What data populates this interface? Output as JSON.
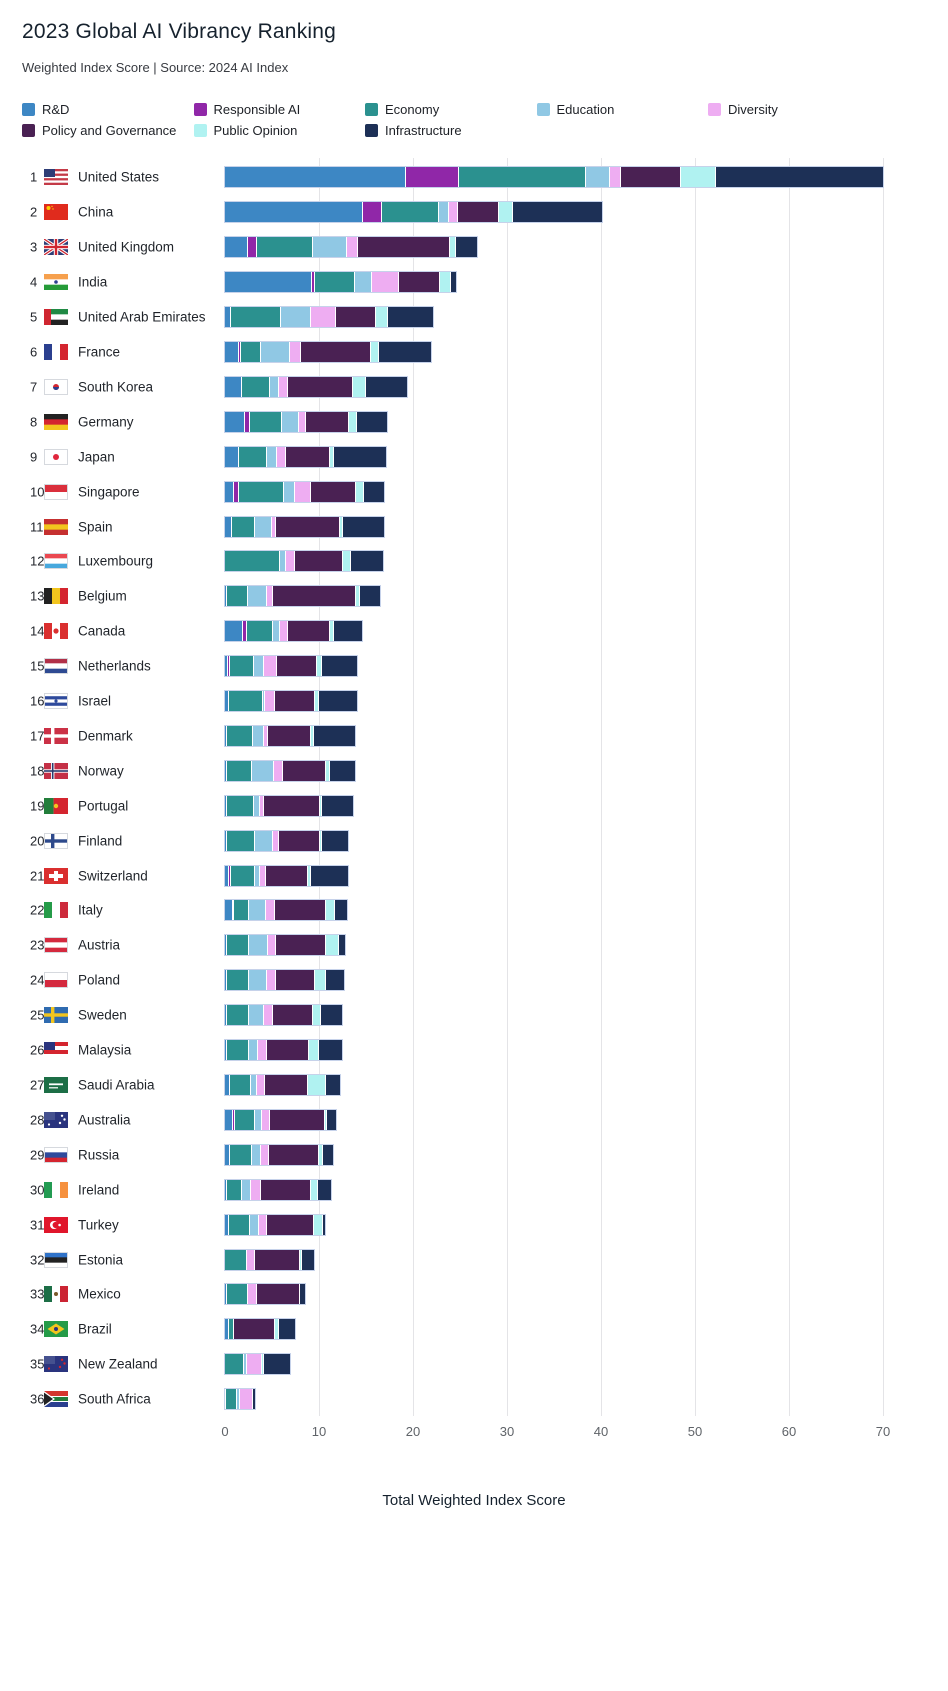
{
  "header": {
    "title": "2023 Global AI Vibrancy Ranking",
    "subtitle": "Weighted Index Score | Source: 2024 AI Index"
  },
  "palette": {
    "rnd": "#3d87c4",
    "responsible_ai": "#9027a8",
    "economy": "#2b918f",
    "education": "#90c8e4",
    "diversity": "#eeadf2",
    "policy": "#4a2153",
    "public_opinion": "#b0f2f1",
    "infrastructure": "#1d3056",
    "grid": "#e4e4e7",
    "bar_outline": "#c6d2ea"
  },
  "axis": {
    "ticks": [
      0,
      10,
      20,
      30,
      40,
      50,
      60,
      70
    ],
    "xlabel": "Total Weighted Index Score",
    "xlim": [
      0,
      70
    ]
  },
  "chart_data": {
    "type": "bar",
    "orientation": "horizontal",
    "stacked": true,
    "grid": true,
    "legend_position": "top",
    "xlabel": "Total Weighted Index Score",
    "xlim": [
      0,
      70
    ],
    "ranks": [
      1,
      2,
      3,
      4,
      5,
      6,
      7,
      8,
      9,
      10,
      11,
      12,
      13,
      14,
      15,
      16,
      17,
      18,
      19,
      20,
      21,
      22,
      23,
      24,
      25,
      26,
      27,
      28,
      29,
      30,
      31,
      32,
      33,
      34,
      35,
      36
    ],
    "categories": [
      "United States",
      "China",
      "United Kingdom",
      "India",
      "United Arab Emirates",
      "France",
      "South Korea",
      "Germany",
      "Japan",
      "Singapore",
      "Spain",
      "Luxembourg",
      "Belgium",
      "Canada",
      "Netherlands",
      "Israel",
      "Denmark",
      "Norway",
      "Portugal",
      "Finland",
      "Switzerland",
      "Italy",
      "Austria",
      "Poland",
      "Sweden",
      "Malaysia",
      "Saudi Arabia",
      "Australia",
      "Russia",
      "Ireland",
      "Turkey",
      "Estonia",
      "Mexico",
      "Brazil",
      "New Zealand",
      "South Africa"
    ],
    "series": [
      {
        "name": "R&D",
        "color_key": "rnd",
        "values": [
          19.3,
          14.7,
          2.4,
          9.3,
          0.6,
          1.5,
          1.8,
          2.1,
          1.5,
          1.0,
          0.7,
          0,
          0.2,
          1.9,
          0.3,
          0.4,
          0.2,
          0.2,
          0.2,
          0.2,
          0.4,
          0.8,
          0.2,
          0.2,
          0.2,
          0.2,
          0.5,
          0.8,
          0.5,
          0.2,
          0.4,
          0,
          0.2,
          0.4,
          0,
          0.15
        ]
      },
      {
        "name": "Responsible AI",
        "color_key": "responsible_ai",
        "values": [
          5.6,
          2.0,
          1.0,
          0.3,
          0,
          0.2,
          0,
          0.6,
          0,
          0.5,
          0,
          0,
          0,
          0.4,
          0.2,
          0,
          0,
          0,
          0,
          0,
          0.2,
          0.2,
          0,
          0,
          0,
          0,
          0,
          0.3,
          0,
          0,
          0,
          0,
          0,
          0,
          0,
          0
        ]
      },
      {
        "name": "Economy",
        "color_key": "economy",
        "values": [
          13.5,
          6.1,
          6.0,
          4.2,
          5.4,
          2.1,
          3.0,
          3.4,
          3.0,
          4.8,
          2.5,
          5.9,
          2.3,
          2.8,
          2.6,
          3.6,
          2.8,
          2.7,
          2.9,
          3.0,
          2.6,
          1.6,
          2.4,
          2.4,
          2.4,
          2.4,
          2.3,
          2.1,
          2.4,
          1.6,
          2.3,
          2.3,
          2.2,
          0.6,
          2.0,
          1.15
        ]
      },
      {
        "name": "Education",
        "color_key": "education",
        "values": [
          2.6,
          1.0,
          3.6,
          1.8,
          3.2,
          3.1,
          1.0,
          1.8,
          1.0,
          1.2,
          1.8,
          0.6,
          2.0,
          0.7,
          1.1,
          0.3,
          1.2,
          2.3,
          0.6,
          1.9,
          0.5,
          1.8,
          2.0,
          1.9,
          1.5,
          0.9,
          0.6,
          0.7,
          0.9,
          1.0,
          0.9,
          0,
          0,
          0,
          0.3,
          0.3
        ]
      },
      {
        "name": "Diversity",
        "color_key": "diversity",
        "values": [
          1.1,
          1.0,
          1.2,
          2.9,
          2.6,
          1.2,
          0.9,
          0.7,
          1.0,
          1.7,
          0.4,
          0.9,
          0.6,
          0.9,
          1.3,
          1.0,
          0.4,
          1.0,
          0.4,
          0.6,
          0.7,
          0.9,
          0.8,
          0.9,
          1.0,
          1.0,
          0.9,
          0.9,
          0.9,
          1.0,
          0.9,
          0.9,
          1.0,
          0,
          1.6,
          1.4
        ]
      },
      {
        "name": "Policy and Governance",
        "color_key": "policy",
        "values": [
          6.4,
          4.4,
          9.7,
          4.4,
          4.3,
          7.4,
          6.9,
          4.6,
          4.7,
          4.7,
          6.8,
          5.2,
          8.8,
          4.5,
          4.3,
          4.3,
          4.5,
          4.6,
          6.0,
          4.4,
          4.4,
          5.5,
          5.3,
          4.2,
          4.3,
          4.4,
          4.5,
          5.8,
          5.3,
          5.3,
          5.0,
          4.8,
          4.6,
          4.3,
          0,
          0
        ]
      },
      {
        "name": "Public Opinion",
        "color_key": "public_opinion",
        "values": [
          3.7,
          1.4,
          0.7,
          1.2,
          1.2,
          0.9,
          1.4,
          0.9,
          0.4,
          0.9,
          0.4,
          0.8,
          0.5,
          0.4,
          0.5,
          0.4,
          0.4,
          0.4,
          0.2,
          0.2,
          0.4,
          0.9,
          1.4,
          1.2,
          0.8,
          1.1,
          1.9,
          0.3,
          0.4,
          0.8,
          0.9,
          0.2,
          0,
          0.4,
          0.2,
          0
        ]
      },
      {
        "name": "Infrastructure",
        "color_key": "infrastructure",
        "values": [
          17.8,
          9.5,
          2.2,
          0.5,
          4.8,
          5.5,
          4.4,
          3.1,
          5.5,
          2.1,
          4.3,
          3.4,
          2.1,
          3.0,
          3.8,
          4.0,
          4.3,
          2.6,
          3.3,
          2.8,
          3.9,
          1.3,
          0.7,
          1.9,
          2.3,
          2.4,
          1.5,
          0.9,
          1.1,
          1.4,
          0.2,
          1.3,
          0.5,
          1.8,
          2.8,
          0.2
        ]
      }
    ]
  },
  "flags": [
    {
      "t": "h",
      "s": [
        "#c43a47",
        "#ffffff",
        "#c43a47",
        "#ffffff",
        "#c43a47",
        "#ffffff",
        "#c43a47"
      ],
      "canton": "#2e3d76"
    },
    {
      "t": "solid",
      "s": [
        "#e02b1d"
      ],
      "star": "#fcd000"
    },
    {
      "t": "uk"
    },
    {
      "t": "h",
      "s": [
        "#f6a04d",
        "#ffffff",
        "#259b38"
      ],
      "dot": "#2b3f8f",
      "dotr": 1.8
    },
    {
      "t": "h",
      "s": [
        "#208a44",
        "#ffffff",
        "#222222"
      ],
      "bar": "#cf2630"
    },
    {
      "t": "v",
      "s": [
        "#2b3f8f",
        "#ffffff",
        "#d4252f"
      ]
    },
    {
      "t": "solid",
      "s": [
        "#ffffff"
      ],
      "border": 1,
      "dot": "#d4252f",
      "dot2": "#2b3f8f"
    },
    {
      "t": "h",
      "s": [
        "#222222",
        "#d4252f",
        "#f2c51e"
      ]
    },
    {
      "t": "solid",
      "s": [
        "#ffffff"
      ],
      "border": 1,
      "dot": "#e0263c"
    },
    {
      "t": "h",
      "s": [
        "#da2f3c",
        "#ffffff"
      ],
      "border": 1
    },
    {
      "t": "h",
      "s": [
        "#c53030",
        "#f2c51e",
        "#c53030"
      ]
    },
    {
      "t": "h",
      "s": [
        "#ea4850",
        "#ffffff",
        "#47a8dd"
      ],
      "border": 1
    },
    {
      "t": "v",
      "s": [
        "#222222",
        "#f2c51e",
        "#d4252f"
      ]
    },
    {
      "t": "v",
      "s": [
        "#da2f2f",
        "#ffffff",
        "#da2f2f"
      ],
      "dot": "#da2f2f",
      "dotr": 2.6
    },
    {
      "t": "h",
      "s": [
        "#b13048",
        "#ffffff",
        "#2e4a92"
      ],
      "border": 1
    },
    {
      "t": "h",
      "s": [
        "#ffffff",
        "#2e4a9c",
        "#ffffff",
        "#2e4a9c",
        "#ffffff"
      ],
      "border": 1,
      "dot": "#2e4a9c",
      "dotr": 1.6
    },
    {
      "t": "cross",
      "s": [
        "#cb3146",
        "#ffffff"
      ]
    },
    {
      "t": "cross",
      "s": [
        "#c43046",
        "#ffffff",
        "#2a3a6e"
      ]
    },
    {
      "t": "v2",
      "s": [
        "#237e3b",
        "#d4252f"
      ],
      "dot": "#f2c51e",
      "dotr": 2.2
    },
    {
      "t": "cross",
      "s": [
        "#ffffff",
        "#2e4a8c"
      ],
      "border": 1
    },
    {
      "t": "chx",
      "s": [
        "#da2f2f",
        "#ffffff"
      ]
    },
    {
      "t": "v",
      "s": [
        "#259b48",
        "#ffffff",
        "#cd2a3c"
      ]
    },
    {
      "t": "h",
      "s": [
        "#d4293e",
        "#ffffff",
        "#d4293e"
      ],
      "border": 1
    },
    {
      "t": "h",
      "s": [
        "#ffffff",
        "#d4293e"
      ],
      "border": 1
    },
    {
      "t": "cross",
      "s": [
        "#2f6bb0",
        "#f2c51e"
      ]
    },
    {
      "t": "h",
      "s": [
        "#d4252f",
        "#ffffff",
        "#d4252f",
        "#ffffff"
      ],
      "canton": "#2a347e"
    },
    {
      "t": "solid",
      "s": [
        "#1c6e46"
      ],
      "dash": "#ffffff"
    },
    {
      "t": "solid",
      "s": [
        "#2a347e"
      ],
      "canton": "#45518f",
      "stars": "#ffffff"
    },
    {
      "t": "h",
      "s": [
        "#ffffff",
        "#2e4a9c",
        "#d4252f"
      ],
      "border": 1
    },
    {
      "t": "v",
      "s": [
        "#239b52",
        "#ffffff",
        "#f6913e"
      ]
    },
    {
      "t": "solid",
      "s": [
        "#e0162b"
      ],
      "crescent": "#ffffff"
    },
    {
      "t": "h",
      "s": [
        "#2f72c8",
        "#222222",
        "#ffffff"
      ],
      "border": 1
    },
    {
      "t": "v",
      "s": [
        "#1c6e46",
        "#ffffff",
        "#cb2433"
      ],
      "dot": "#7a5a2a",
      "dotr": 2
    },
    {
      "t": "solid",
      "s": [
        "#259b48"
      ],
      "diamond": "#f2c51e",
      "dot": "#2a347e",
      "dotr": 2
    },
    {
      "t": "solid",
      "s": [
        "#2a347e"
      ],
      "canton": "#45518f",
      "stars": "#d4252f"
    },
    {
      "t": "za",
      "s": [
        "#d4362e",
        "#2a3f8f",
        "#237e3b"
      ],
      "tri": "#222222"
    }
  ]
}
